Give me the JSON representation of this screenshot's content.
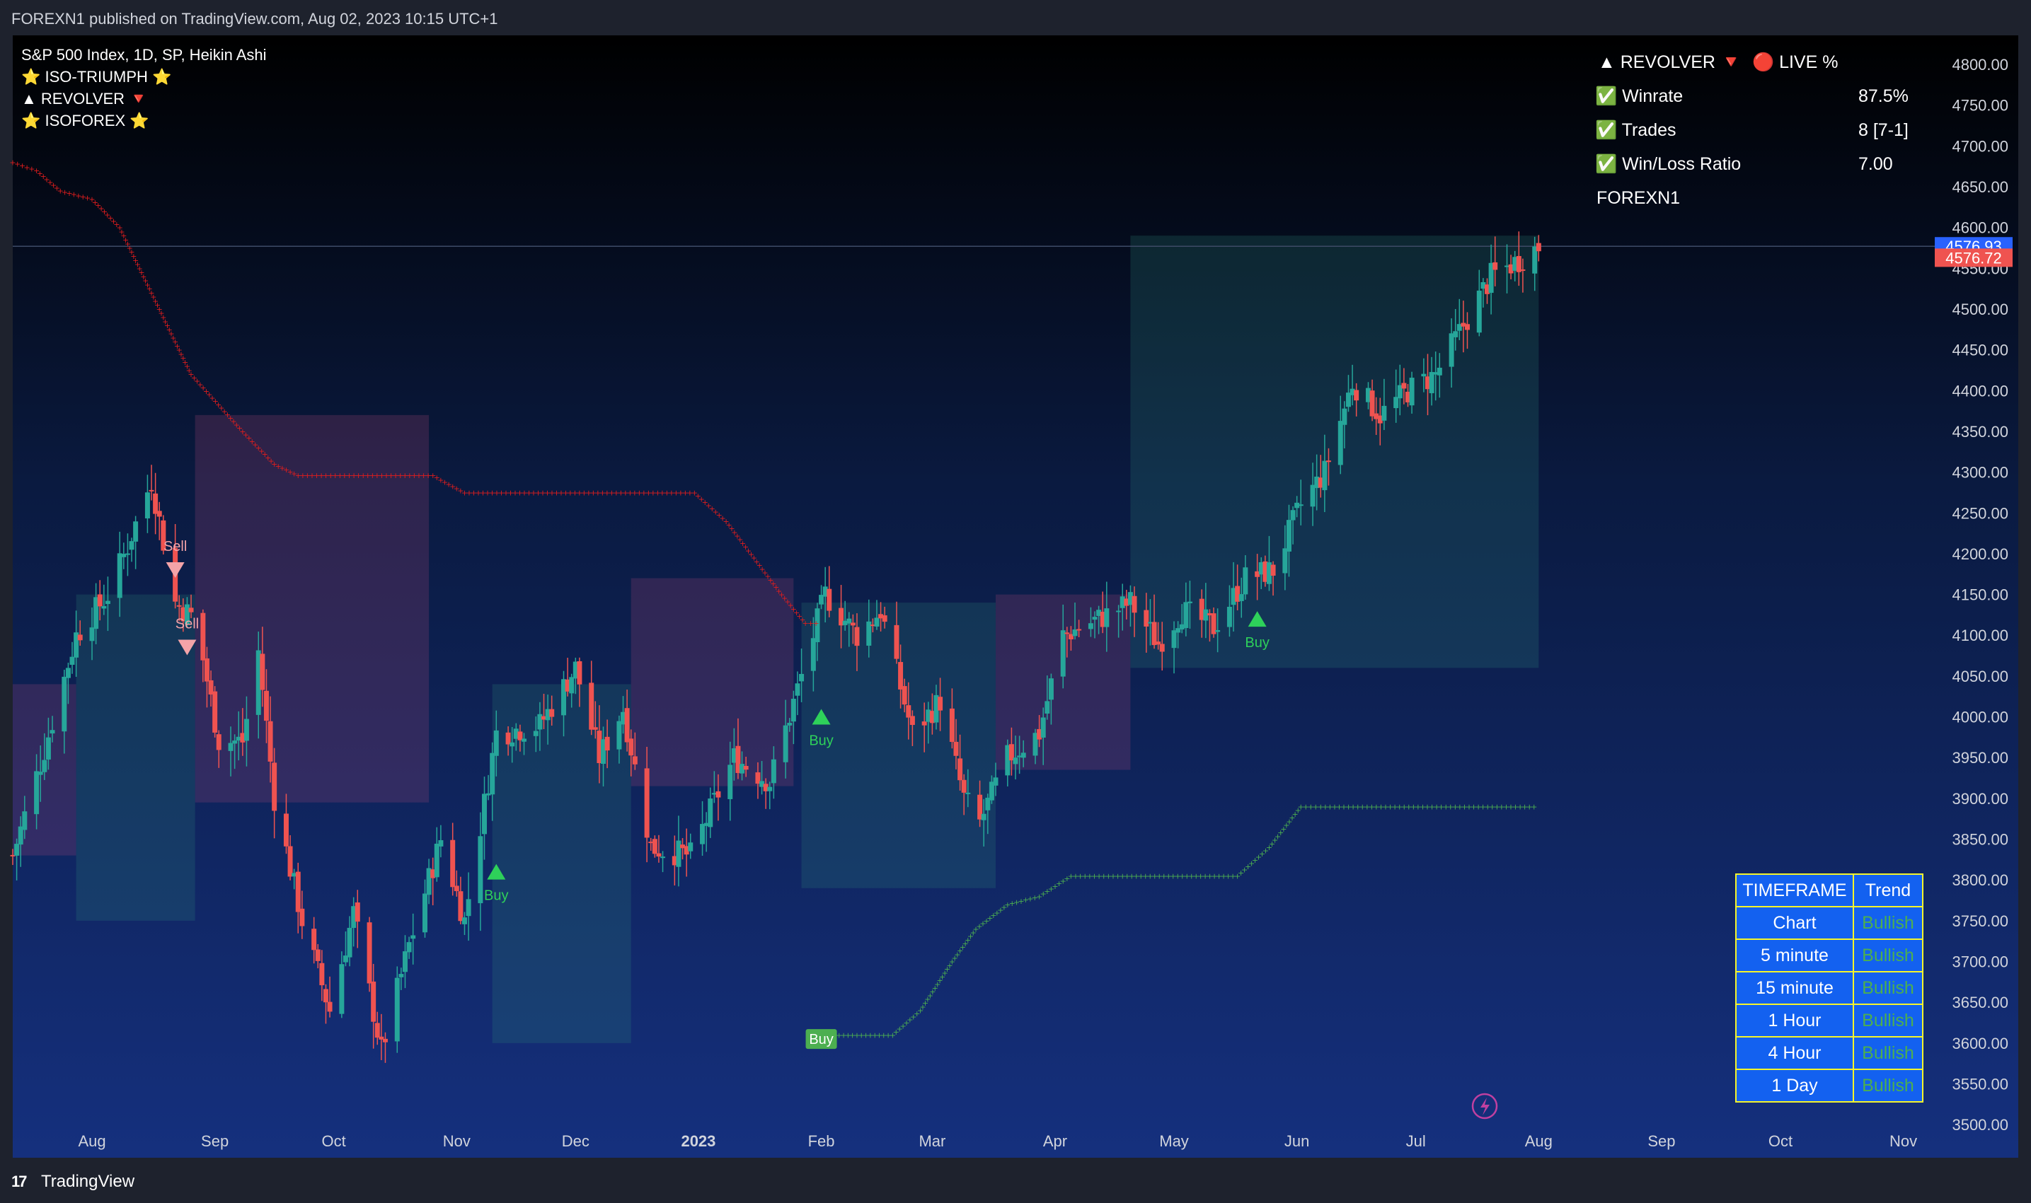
{
  "header": {
    "published": "FOREXN1 published on TradingView.com, Aug 02, 2023 10:15 UTC+1"
  },
  "footer": {
    "logo_text": "TradingView",
    "logo_mark": "17"
  },
  "legend": {
    "symbol": "S&P 500 Index, 1D, SP, Heikin Ashi",
    "indicators": [
      "⭐ ISO-TRIUMPH ⭐",
      "▲ REVOLVER 🔻",
      "⭐ ISOFOREX ⭐"
    ]
  },
  "stats_panel": {
    "header_left": "▲ REVOLVER 🔻",
    "header_right": "🔴 LIVE %",
    "rows": [
      {
        "label": "✅ Winrate",
        "value": "87.5%"
      },
      {
        "label": "✅ Trades",
        "value": "8 [7-1]"
      },
      {
        "label": "✅ Win/Loss Ratio",
        "value": "7.00"
      }
    ],
    "footer": "FOREXN1"
  },
  "trend_table": {
    "headers": [
      "TIMEFRAME",
      "Trend"
    ],
    "rows": [
      {
        "timeframe": "Chart",
        "trend": "Bullish"
      },
      {
        "timeframe": "5 minute",
        "trend": "Bullish"
      },
      {
        "timeframe": "15 minute",
        "trend": "Bullish"
      },
      {
        "timeframe": "1 Hour",
        "trend": "Bullish"
      },
      {
        "timeframe": "4 Hour",
        "trend": "Bullish"
      },
      {
        "timeframe": "1 Day",
        "trend": "Bullish"
      }
    ]
  },
  "chart_data": {
    "type": "candlestick",
    "ylim": [
      3500,
      4825
    ],
    "y_ticks": [
      3500,
      3550,
      3600,
      3650,
      3700,
      3750,
      3800,
      3850,
      3900,
      3950,
      4000,
      4050,
      4100,
      4150,
      4200,
      4250,
      4300,
      4350,
      4400,
      4450,
      4500,
      4550,
      4600,
      4650,
      4700,
      4750,
      4800
    ],
    "y_tick_labels": [
      "3500.00",
      "3550.00",
      "3600.00",
      "3650.00",
      "3700.00",
      "3750.00",
      "3800.00",
      "3850.00",
      "3900.00",
      "3950.00",
      "4000.00",
      "4050.00",
      "4100.00",
      "4150.00",
      "4200.00",
      "4250.00",
      "4300.00",
      "4350.00",
      "4400.00",
      "4450.00",
      "4500.00",
      "4550.00",
      "4600.00",
      "4650.00",
      "4700.00",
      "4750.00",
      "4800.00"
    ],
    "x_ticks": [
      {
        "date": "2022-08-01",
        "label": "Aug",
        "bold": false
      },
      {
        "date": "2022-09-01",
        "label": "Sep",
        "bold": false
      },
      {
        "date": "2022-10-01",
        "label": "Oct",
        "bold": false
      },
      {
        "date": "2022-11-01",
        "label": "Nov",
        "bold": false
      },
      {
        "date": "2022-12-01",
        "label": "Dec",
        "bold": false
      },
      {
        "date": "2023-01-01",
        "label": "2023",
        "bold": true
      },
      {
        "date": "2023-02-01",
        "label": "Feb",
        "bold": false
      },
      {
        "date": "2023-03-01",
        "label": "Mar",
        "bold": false
      },
      {
        "date": "2023-04-01",
        "label": "Apr",
        "bold": false
      },
      {
        "date": "2023-05-01",
        "label": "May",
        "bold": false
      },
      {
        "date": "2023-06-01",
        "label": "Jun",
        "bold": false
      },
      {
        "date": "2023-07-01",
        "label": "Jul",
        "bold": false
      },
      {
        "date": "2023-08-01",
        "label": "Aug",
        "bold": false
      },
      {
        "date": "2023-09-01",
        "label": "Sep",
        "bold": false
      },
      {
        "date": "2023-10-01",
        "label": "Oct",
        "bold": false
      },
      {
        "date": "2023-11-01",
        "label": "Nov",
        "bold": false
      }
    ],
    "x_range": [
      "2022-07-12",
      "2023-11-30"
    ],
    "price_path": [
      [
        "2022-07-12",
        3830
      ],
      [
        "2022-07-20",
        3960
      ],
      [
        "2022-07-28",
        4100
      ],
      [
        "2022-08-05",
        4150
      ],
      [
        "2022-08-10",
        4210
      ],
      [
        "2022-08-16",
        4290
      ],
      [
        "2022-08-22",
        4140
      ],
      [
        "2022-08-27",
        4120
      ],
      [
        "2022-09-02",
        3970
      ],
      [
        "2022-09-08",
        3970
      ],
      [
        "2022-09-12",
        4080
      ],
      [
        "2022-09-16",
        3900
      ],
      [
        "2022-09-23",
        3750
      ],
      [
        "2022-09-30",
        3640
      ],
      [
        "2022-10-06",
        3760
      ],
      [
        "2022-10-13",
        3590
      ],
      [
        "2022-10-20",
        3720
      ],
      [
        "2022-10-28",
        3850
      ],
      [
        "2022-11-03",
        3750
      ],
      [
        "2022-11-11",
        3980
      ],
      [
        "2022-11-22",
        3990
      ],
      [
        "2022-12-01",
        4060
      ],
      [
        "2022-12-07",
        3950
      ],
      [
        "2022-12-13",
        4010
      ],
      [
        "2022-12-20",
        3840
      ],
      [
        "2022-12-30",
        3830
      ],
      [
        "2023-01-10",
        3950
      ],
      [
        "2023-01-19",
        3920
      ],
      [
        "2023-01-27",
        4050
      ],
      [
        "2023-02-02",
        4150
      ],
      [
        "2023-02-10",
        4100
      ],
      [
        "2023-02-16",
        4130
      ],
      [
        "2023-02-24",
        3980
      ],
      [
        "2023-03-03",
        4020
      ],
      [
        "2023-03-09",
        3900
      ],
      [
        "2023-03-13",
        3870
      ],
      [
        "2023-03-20",
        3950
      ],
      [
        "2023-03-28",
        3980
      ],
      [
        "2023-04-03",
        4100
      ],
      [
        "2023-04-12",
        4120
      ],
      [
        "2023-04-20",
        4140
      ],
      [
        "2023-04-27",
        4090
      ],
      [
        "2023-05-03",
        4130
      ],
      [
        "2023-05-11",
        4110
      ],
      [
        "2023-05-19",
        4170
      ],
      [
        "2023-05-26",
        4180
      ],
      [
        "2023-06-02",
        4260
      ],
      [
        "2023-06-08",
        4300
      ],
      [
        "2023-06-15",
        4410
      ],
      [
        "2023-06-22",
        4370
      ],
      [
        "2023-06-29",
        4400
      ],
      [
        "2023-07-06",
        4420
      ],
      [
        "2023-07-13",
        4480
      ],
      [
        "2023-07-20",
        4540
      ],
      [
        "2023-07-27",
        4560
      ],
      [
        "2023-08-01",
        4577
      ]
    ],
    "last_price": "4576.93",
    "close_price": "4576.72",
    "revolver_line": [
      [
        "2022-07-12",
        4680
      ],
      [
        "2022-07-18",
        4670
      ],
      [
        "2022-07-24",
        4645
      ],
      [
        "2022-08-01",
        4635
      ],
      [
        "2022-08-08",
        4600
      ],
      [
        "2022-08-16",
        4520
      ],
      [
        "2022-08-26",
        4420
      ],
      [
        "2022-09-08",
        4350
      ],
      [
        "2022-09-16",
        4310
      ],
      [
        "2022-09-22",
        4296
      ],
      [
        "2022-10-26",
        4296
      ],
      [
        "2022-11-03",
        4275
      ],
      [
        "2022-12-31",
        4275
      ],
      [
        "2023-01-08",
        4240
      ],
      [
        "2023-01-22",
        4150
      ],
      [
        "2023-01-28",
        4115
      ],
      [
        "2023-02-01",
        4115
      ]
    ],
    "support_line": [
      [
        "2023-02-01",
        3610
      ],
      [
        "2023-02-19",
        3610
      ],
      [
        "2023-02-26",
        3640
      ],
      [
        "2023-03-06",
        3700
      ],
      [
        "2023-03-12",
        3740
      ],
      [
        "2023-03-20",
        3770
      ],
      [
        "2023-03-28",
        3780
      ],
      [
        "2023-04-05",
        3805
      ],
      [
        "2023-04-18",
        3805
      ],
      [
        "2023-05-17",
        3805
      ],
      [
        "2023-05-25",
        3840
      ],
      [
        "2023-06-02",
        3890
      ],
      [
        "2023-06-07",
        3890
      ],
      [
        "2023-08-01",
        3890
      ]
    ],
    "bear_zones": [
      {
        "start": "2022-07-12",
        "end": "2022-07-28",
        "upper": 4040,
        "lower": 3830
      },
      {
        "start": "2022-08-27",
        "end": "2022-10-25",
        "upper": 4370,
        "lower": 3895
      },
      {
        "start": "2022-12-15",
        "end": "2023-01-25",
        "upper": 4170,
        "lower": 3915
      },
      {
        "start": "2023-03-17",
        "end": "2023-04-20",
        "upper": 4150,
        "lower": 3935
      }
    ],
    "bull_zones": [
      {
        "start": "2022-07-28",
        "end": "2022-08-27",
        "upper": 4150,
        "lower": 3750
      },
      {
        "start": "2022-11-10",
        "end": "2022-12-15",
        "upper": 4040,
        "lower": 3600
      },
      {
        "start": "2023-01-27",
        "end": "2023-03-17",
        "upper": 4140,
        "lower": 3790
      },
      {
        "start": "2023-04-20",
        "end": "2023-08-01",
        "upper": 4590,
        "lower": 4060
      }
    ],
    "signals": [
      {
        "date": "2022-08-22",
        "price": 4180,
        "label": "Sell",
        "type": "sell"
      },
      {
        "date": "2022-08-25",
        "price": 4085,
        "label": "Sell",
        "type": "sell"
      },
      {
        "date": "2022-11-11",
        "price": 3810,
        "label": "Buy",
        "type": "buy"
      },
      {
        "date": "2023-02-01",
        "price": 4000,
        "label": "Buy",
        "type": "buy"
      },
      {
        "date": "2023-05-22",
        "price": 4120,
        "label": "Buy",
        "type": "buy-boxed",
        "box_price": 3605
      }
    ]
  },
  "colors": {
    "bull": "#26a69a",
    "bear": "#ef5350",
    "revolver": "#e01d1d",
    "support": "#4caf50",
    "buy_marker": "#2ed15a",
    "sell_marker": "#f4a3a8",
    "price_tag": "#2962ff",
    "close_tag": "#ef5350"
  }
}
